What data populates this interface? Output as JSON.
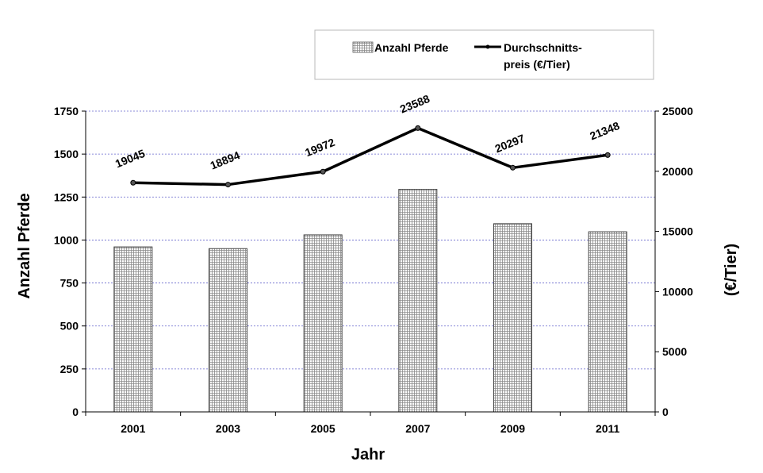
{
  "chart_data": {
    "type": "bar",
    "categories": [
      "2001",
      "2003",
      "2005",
      "2007",
      "2009",
      "2011"
    ],
    "xlabel": "Jahr",
    "ylabel": "Anzahl Pferde",
    "y2label": "(€/Tier)",
    "ylim": [
      0,
      1750
    ],
    "yticks": [
      "0",
      "250",
      "500",
      "750",
      "1000",
      "1250",
      "1500",
      "1750"
    ],
    "y2lim": [
      0,
      25000
    ],
    "y2ticks": [
      "0",
      "5000",
      "10000",
      "15000",
      "20000",
      "25000"
    ],
    "grid": true,
    "legend_position": "top-right",
    "series": [
      {
        "name": "Anzahl Pferde",
        "type": "bar",
        "axis": "left",
        "values": [
          960,
          950,
          1030,
          1295,
          1095,
          1048
        ]
      },
      {
        "name": "Durchschnitts-preis (€/Tier)",
        "legend_lines": [
          "Durchschnitts-",
          "preis (€/Tier)"
        ],
        "type": "line",
        "axis": "right",
        "values": [
          19045,
          18894,
          19972,
          23588,
          20297,
          21348
        ],
        "data_labels": [
          "19045",
          "18894",
          "19972",
          "23588",
          "20297",
          "21348"
        ]
      }
    ],
    "colors": {
      "gridline": "#6666cc",
      "bar_pattern": "#888888",
      "line": "#000000"
    }
  }
}
